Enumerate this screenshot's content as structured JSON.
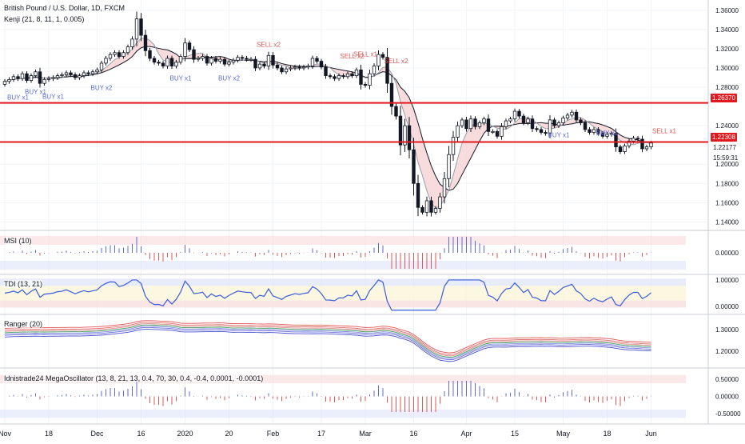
{
  "chart_data": {
    "type": "candlestick",
    "title": "British Pound / U.S. Dollar, 1D, FXCM",
    "subtitle": "Kenji (21, 8, 11, 1, 0.005)",
    "last_price": "1.22177",
    "countdown": "15:59:31",
    "colors": {
      "up": "#ffffff",
      "down": "#131722",
      "wick": "#131722",
      "level": "#e0191e",
      "buy": "#5b6bd8",
      "sell": "#e05555",
      "band_fill": "#f6d2d4",
      "zone_red": "#f8dada",
      "zone_blue": "#dde2f8",
      "zone_yellow": "#fbf5d9"
    },
    "x_axis": {
      "labels": [
        "Nov",
        "18",
        "Dec",
        "16",
        "2020",
        "20",
        "Feb",
        "17",
        "Mar",
        "16",
        "Apr",
        "15",
        "May",
        "18",
        "Jun"
      ],
      "label_index": [
        0,
        10,
        21,
        31,
        41,
        51,
        61,
        72,
        82,
        93,
        105,
        116,
        127,
        137,
        147
      ]
    },
    "y_axis": {
      "ticks": [
        1.36,
        1.34,
        1.32,
        1.3,
        1.28,
        1.24,
        1.2,
        1.18,
        1.16,
        1.14
      ],
      "tick_labels": [
        "1.36000",
        "1.34000",
        "1.32000",
        "1.30000",
        "1.28000",
        "1.24000",
        "1.20000",
        "1.18000",
        "1.16000",
        "1.14000"
      ],
      "ylim": [
        1.132,
        1.364
      ]
    },
    "levels": [
      {
        "value": 1.2637,
        "label": "1.26370"
      },
      {
        "value": 1.22308,
        "label": "1.22308"
      }
    ],
    "close": [
      1.286,
      1.288,
      1.291,
      1.289,
      1.294,
      1.287,
      1.292,
      1.296,
      1.284,
      1.288,
      1.289,
      1.29,
      1.292,
      1.293,
      1.295,
      1.293,
      1.29,
      1.292,
      1.295,
      1.294,
      1.296,
      1.298,
      1.305,
      1.31,
      1.314,
      1.316,
      1.312,
      1.316,
      1.322,
      1.33,
      1.351,
      1.334,
      1.318,
      1.31,
      1.306,
      1.305,
      1.302,
      1.31,
      1.302,
      1.306,
      1.312,
      1.326,
      1.319,
      1.309,
      1.31,
      1.312,
      1.305,
      1.31,
      1.307,
      1.309,
      1.304,
      1.306,
      1.308,
      1.311,
      1.31,
      1.309,
      1.309,
      1.3,
      1.304,
      1.302,
      1.313,
      1.303,
      1.3,
      1.296,
      1.299,
      1.3,
      1.301,
      1.3,
      1.301,
      1.302,
      1.31,
      1.307,
      1.301,
      1.292,
      1.291,
      1.289,
      1.292,
      1.291,
      1.294,
      1.292,
      1.298,
      1.283,
      1.282,
      1.294,
      1.302,
      1.314,
      1.311,
      1.284,
      1.26,
      1.25,
      1.22,
      1.24,
      1.215,
      1.18,
      1.155,
      1.15,
      1.162,
      1.15,
      1.154,
      1.166,
      1.185,
      1.21,
      1.228,
      1.24,
      1.246,
      1.237,
      1.247,
      1.239,
      1.243,
      1.247,
      1.234,
      1.234,
      1.229,
      1.239,
      1.245,
      1.247,
      1.255,
      1.25,
      1.243,
      1.247,
      1.237,
      1.236,
      1.233,
      1.232,
      1.246,
      1.24,
      1.243,
      1.248,
      1.251,
      1.254,
      1.246,
      1.243,
      1.236,
      1.233,
      1.236,
      1.232,
      1.229,
      1.231,
      1.232,
      1.218,
      1.213,
      1.219,
      1.224,
      1.227,
      1.226,
      1.216,
      1.218,
      1.222
    ],
    "signals": [
      {
        "label": "BUY x1",
        "index": 3,
        "price": 1.267,
        "kind": "buy"
      },
      {
        "label": "BUY x1",
        "index": 7,
        "price": 1.273,
        "kind": "buy"
      },
      {
        "label": "BUY x1",
        "index": 11,
        "price": 1.268,
        "kind": "buy"
      },
      {
        "label": "BUY x2",
        "index": 22,
        "price": 1.277,
        "kind": "buy"
      },
      {
        "label": "BUY x1",
        "index": 40,
        "price": 1.287,
        "kind": "buy"
      },
      {
        "label": "BUY x2",
        "index": 51,
        "price": 1.287,
        "kind": "buy"
      },
      {
        "label": "SELL x2",
        "index": 60,
        "price": 1.322,
        "kind": "sell"
      },
      {
        "label": "SELL x2",
        "index": 79,
        "price": 1.31,
        "kind": "sell"
      },
      {
        "label": "SELL x1",
        "index": 82,
        "price": 1.312,
        "kind": "sell"
      },
      {
        "label": "SELL x2",
        "index": 89,
        "price": 1.305,
        "kind": "sell"
      },
      {
        "label": "BUY x1",
        "index": 126,
        "price": 1.228,
        "kind": "buy"
      },
      {
        "label": "BUY x1",
        "index": 137,
        "price": 1.23,
        "kind": "buy"
      },
      {
        "label": "SELL x1",
        "index": 150,
        "price": 1.232,
        "kind": "sell"
      }
    ],
    "panes": [
      {
        "name": "MSI (10)",
        "ticks": [
          "0.00000"
        ],
        "ylim": [
          -1,
          1
        ]
      },
      {
        "name": "TDI (13, 21)",
        "ticks": [
          "1.00000",
          "0.00000"
        ],
        "ylim": [
          -0.25,
          1.15
        ]
      },
      {
        "name": "Ranger (20)",
        "ticks": [
          "1.30000",
          "1.20000"
        ],
        "ylim": [
          1.13,
          1.36
        ]
      },
      {
        "name": "Idnistrade24 MegaOscillator (13, 8, 21, 13, 0.4, 70, 30, 0.4, -0.4, 0.0001, -0.0001)",
        "ticks": [
          "0.50000",
          "0.00000",
          "-0.50000"
        ],
        "ylim": [
          -0.75,
          0.75
        ]
      }
    ]
  }
}
